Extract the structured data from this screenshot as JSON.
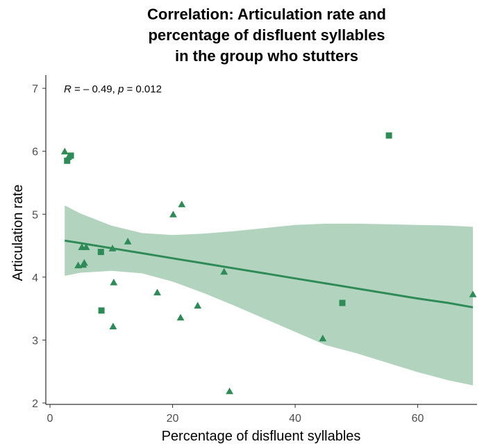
{
  "chart_data": {
    "type": "scatter",
    "title_lines": [
      "Correlation: Articulation rate and",
      "percentage of disfluent syllables",
      "in the group who stutters"
    ],
    "xlabel": "Percentage of disfluent syllables",
    "ylabel": "Articulation rate",
    "xlim": [
      0,
      69
    ],
    "ylim": [
      2,
      7.2
    ],
    "xticks": [
      0,
      20,
      40,
      60
    ],
    "yticks": [
      2,
      3,
      4,
      5,
      6,
      7
    ],
    "xtick_labels": [
      "0",
      "20",
      "40",
      "60"
    ],
    "ytick_labels": [
      "2",
      "3",
      "4",
      "5",
      "6",
      "7"
    ],
    "annotation": {
      "R_sym": "R",
      "R_text": " = – 0.49, ",
      "p_sym": "p",
      "p_text": " = 0.012"
    },
    "color": "#2e8b57",
    "band_color": "#b2d4bf",
    "grid": false,
    "legend": "none",
    "fit": {
      "x": [
        2.4,
        5,
        10,
        15,
        20,
        25,
        30,
        35,
        40,
        45,
        50,
        55,
        60,
        65,
        69
      ],
      "y": [
        4.58,
        4.54,
        4.46,
        4.38,
        4.3,
        4.22,
        4.14,
        4.06,
        3.98,
        3.9,
        3.82,
        3.74,
        3.66,
        3.59,
        3.52
      ],
      "lower": [
        4.02,
        4.07,
        4.1,
        4.06,
        3.93,
        3.75,
        3.55,
        3.34,
        3.13,
        2.92,
        2.79,
        2.64,
        2.49,
        2.36,
        2.28
      ],
      "upper": [
        5.14,
        5.01,
        4.82,
        4.7,
        4.67,
        4.69,
        4.73,
        4.78,
        4.83,
        4.85,
        4.85,
        4.84,
        4.83,
        4.82,
        4.8
      ]
    },
    "points": [
      {
        "x": 2.4,
        "y": 5.99,
        "shape": "triangle"
      },
      {
        "x": 2.8,
        "y": 5.85,
        "shape": "square"
      },
      {
        "x": 3.0,
        "y": 5.9,
        "shape": "triangle"
      },
      {
        "x": 3.4,
        "y": 5.93,
        "shape": "square"
      },
      {
        "x": 4.6,
        "y": 4.18,
        "shape": "triangle"
      },
      {
        "x": 5.2,
        "y": 4.47,
        "shape": "triangle"
      },
      {
        "x": 5.4,
        "y": 4.19,
        "shape": "triangle"
      },
      {
        "x": 5.6,
        "y": 4.22,
        "shape": "triangle"
      },
      {
        "x": 5.9,
        "y": 4.47,
        "shape": "triangle"
      },
      {
        "x": 8.3,
        "y": 4.4,
        "shape": "square"
      },
      {
        "x": 8.4,
        "y": 3.47,
        "shape": "square"
      },
      {
        "x": 10.2,
        "y": 4.45,
        "shape": "triangle"
      },
      {
        "x": 10.4,
        "y": 3.91,
        "shape": "triangle"
      },
      {
        "x": 10.3,
        "y": 3.21,
        "shape": "triangle"
      },
      {
        "x": 12.7,
        "y": 4.56,
        "shape": "triangle"
      },
      {
        "x": 17.5,
        "y": 3.75,
        "shape": "triangle"
      },
      {
        "x": 20.1,
        "y": 4.99,
        "shape": "triangle"
      },
      {
        "x": 21.3,
        "y": 3.35,
        "shape": "triangle"
      },
      {
        "x": 21.5,
        "y": 5.15,
        "shape": "triangle"
      },
      {
        "x": 24.1,
        "y": 3.54,
        "shape": "triangle"
      },
      {
        "x": 28.4,
        "y": 4.08,
        "shape": "triangle"
      },
      {
        "x": 29.3,
        "y": 2.18,
        "shape": "triangle"
      },
      {
        "x": 44.5,
        "y": 3.02,
        "shape": "triangle"
      },
      {
        "x": 47.7,
        "y": 3.59,
        "shape": "square"
      },
      {
        "x": 55.3,
        "y": 6.25,
        "shape": "square"
      },
      {
        "x": 69.0,
        "y": 3.72,
        "shape": "triangle"
      }
    ]
  }
}
